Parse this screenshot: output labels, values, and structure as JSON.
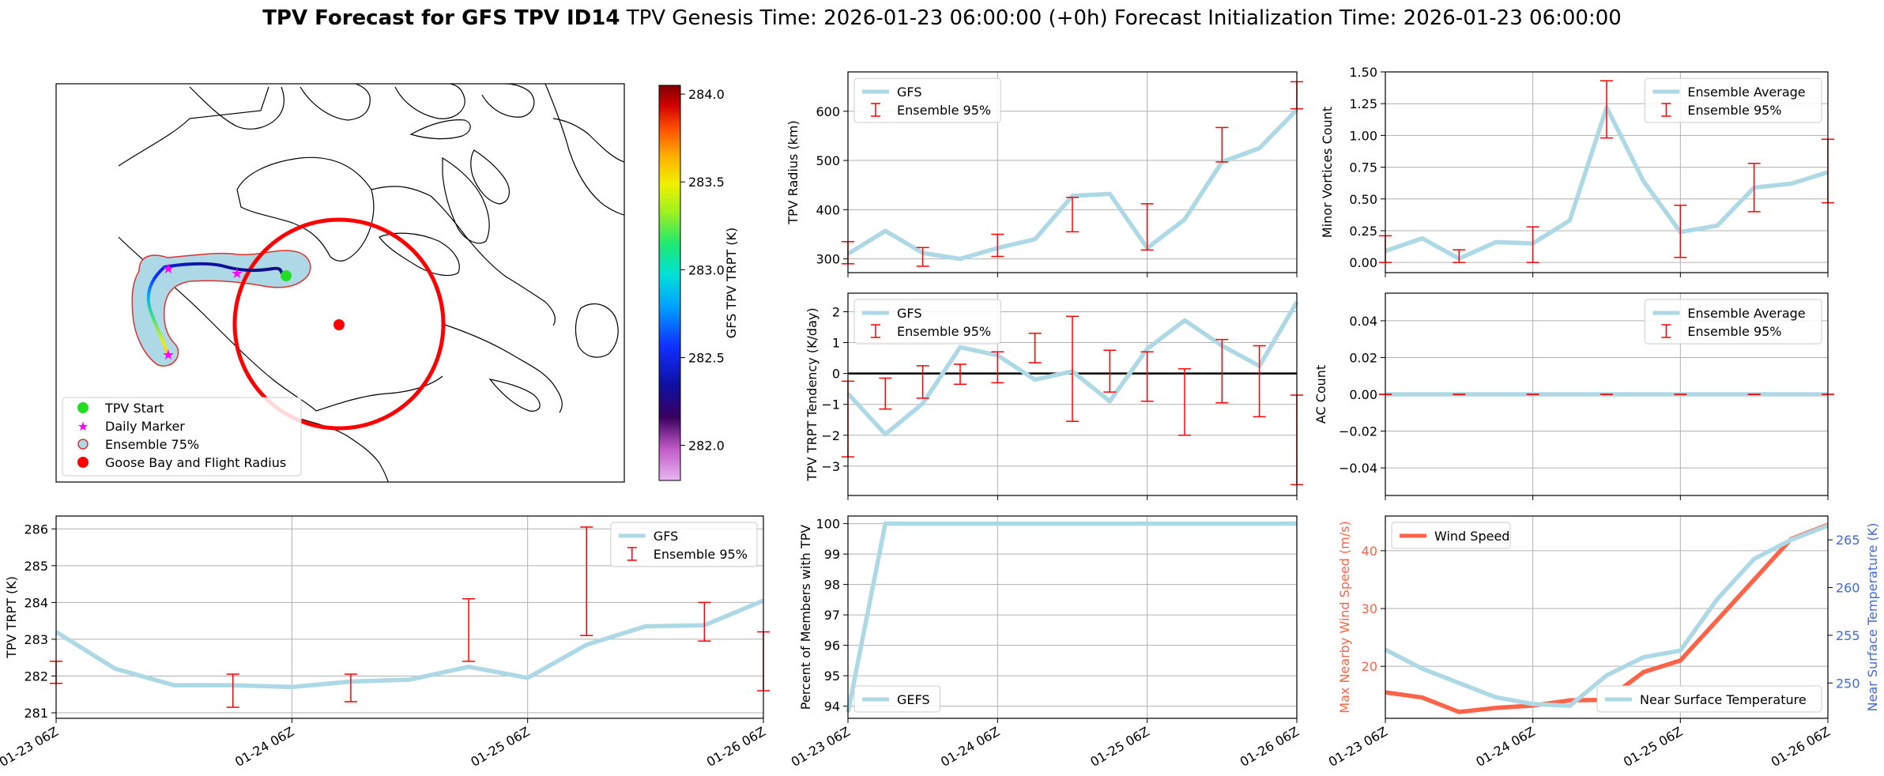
{
  "figure": {
    "title_bold": "TPV Forecast for GFS TPV ID14",
    "title_rest": "TPV Genesis Time: 2026-01-23 06:00:00 (+0h)   Forecast Initialization Time: 2026-01-23 06:00:00"
  },
  "colors": {
    "gfs_line": "#add8e6",
    "ensemble_bar": "#ff0000",
    "wind": "#ff6347",
    "temp_axis": "#4169e1",
    "wind_axis": "#ff6347",
    "zero_line": "#000000",
    "grid": "#b0b0b0"
  },
  "map": {
    "colorbar_label": "GFS TPV TRPT (K)",
    "colorbar_ticks": [
      "284.0",
      "283.5",
      "283.0",
      "282.5",
      "282.0"
    ],
    "colorbar_tick_values": [
      284.0,
      283.5,
      283.0,
      282.5,
      282.0
    ],
    "colorbar_range": [
      281.8,
      284.05
    ],
    "legend": [
      {
        "label": "TPV Start",
        "marker": "green-dot"
      },
      {
        "label": "Daily Marker",
        "marker": "magenta-star"
      },
      {
        "label": "Ensemble 75%",
        "marker": "lightblue-circle"
      },
      {
        "label": "Goose Bay and Flight Radius",
        "marker": "red-dot"
      }
    ]
  },
  "chart_data": [
    {
      "id": "radius",
      "type": "line",
      "title": "",
      "ylabel": "TPV Radius (km)",
      "ylim": [
        272,
        680
      ],
      "yticks": [
        300,
        400,
        500,
        600
      ],
      "x_hours": [
        0,
        6,
        12,
        18,
        24,
        30,
        36,
        42,
        48,
        54,
        60,
        66,
        72
      ],
      "series": [
        {
          "name": "GFS",
          "values": [
            310,
            357,
            312,
            300,
            322,
            340,
            428,
            432,
            322,
            380,
            497,
            525,
            603
          ]
        }
      ],
      "errorbars": {
        "name": "Ensemble 95%",
        "x_hours": [
          0,
          12,
          24,
          36,
          48,
          60,
          72
        ],
        "low": [
          290,
          285,
          305,
          355,
          318,
          497,
          605
        ],
        "high": [
          335,
          323,
          350,
          425,
          412,
          567,
          660
        ]
      },
      "legend": [
        "GFS",
        "Ensemble 95%"
      ],
      "legend_position": "top-left"
    },
    {
      "id": "minor",
      "type": "line",
      "ylabel": "Minor Vortices Count",
      "ylim": [
        -0.08,
        1.5
      ],
      "yticks": [
        "0.00",
        "0.25",
        "0.50",
        "0.75",
        "1.00",
        "1.25",
        "1.50"
      ],
      "ytick_values": [
        0,
        0.25,
        0.5,
        0.75,
        1.0,
        1.25,
        1.5
      ],
      "x_hours": [
        0,
        6,
        12,
        18,
        24,
        30,
        36,
        42,
        48,
        54,
        60,
        66,
        72
      ],
      "series": [
        {
          "name": "Ensemble Average",
          "values": [
            0.09,
            0.19,
            0.03,
            0.16,
            0.15,
            0.33,
            1.22,
            0.64,
            0.24,
            0.29,
            0.59,
            0.62,
            0.71
          ]
        }
      ],
      "errorbars": {
        "name": "Ensemble 95%",
        "x_hours": [
          0,
          12,
          24,
          36,
          48,
          60,
          72
        ],
        "low": [
          0.0,
          0.0,
          0.0,
          0.98,
          0.04,
          0.4,
          0.47
        ],
        "high": [
          0.21,
          0.1,
          0.28,
          1.43,
          0.45,
          0.78,
          0.97
        ]
      },
      "legend": [
        "Ensemble Average",
        "Ensemble 95%"
      ],
      "legend_position": "top-right"
    },
    {
      "id": "tendency",
      "type": "line",
      "ylabel": "TPV TRPT Tendency (K/day)",
      "ylim": [
        -3.95,
        2.6
      ],
      "yticks": [
        "2",
        "1",
        "0",
        "−1",
        "−2",
        "−3"
      ],
      "ytick_values": [
        2,
        1,
        0,
        -1,
        -2,
        -3
      ],
      "zero_line": 0,
      "x_hours": [
        0,
        6,
        12,
        18,
        24,
        30,
        36,
        42,
        48,
        54,
        60,
        66,
        72
      ],
      "series": [
        {
          "name": "GFS",
          "values": [
            -0.65,
            -1.97,
            -0.97,
            0.85,
            0.59,
            -0.2,
            0.07,
            -0.9,
            0.8,
            1.72,
            0.9,
            0.24,
            2.31
          ]
        }
      ],
      "errorbars": {
        "name": "Ensemble 95%",
        "x_hours": [
          0,
          6,
          12,
          18,
          24,
          30,
          36,
          42,
          48,
          54,
          60,
          66,
          72
        ],
        "low": [
          -2.7,
          -1.15,
          -0.8,
          -0.35,
          -0.3,
          0.35,
          -1.55,
          -0.6,
          -0.9,
          -2.0,
          -0.95,
          -1.4,
          -3.6
        ],
        "high": [
          -0.25,
          -0.15,
          0.25,
          0.3,
          0.7,
          1.3,
          1.85,
          0.75,
          0.7,
          0.15,
          1.1,
          0.9,
          -0.7
        ]
      },
      "legend": [
        "GFS",
        "Ensemble 95%"
      ],
      "legend_position": "top-left"
    },
    {
      "id": "ac",
      "type": "line",
      "ylabel": "AC Count",
      "ylim": [
        -0.055,
        0.055
      ],
      "yticks": [
        "0.04",
        "0.02",
        "0.00",
        "−0.02",
        "−0.04"
      ],
      "ytick_values": [
        0.04,
        0.02,
        0.0,
        -0.02,
        -0.04
      ],
      "x_hours": [
        0,
        6,
        12,
        18,
        24,
        30,
        36,
        42,
        48,
        54,
        60,
        66,
        72
      ],
      "series": [
        {
          "name": "Ensemble Average",
          "values": [
            0,
            0,
            0,
            0,
            0,
            0,
            0,
            0,
            0,
            0,
            0,
            0,
            0
          ]
        }
      ],
      "errorbars": {
        "name": "Ensemble 95%",
        "x_hours": [
          0,
          12,
          24,
          36,
          48,
          60,
          72
        ],
        "low": [
          0,
          0,
          0,
          0,
          0,
          0,
          0
        ],
        "high": [
          0,
          0,
          0,
          0,
          0,
          0,
          0
        ]
      },
      "legend": [
        "Ensemble Average",
        "Ensemble 95%"
      ],
      "legend_position": "top-right"
    },
    {
      "id": "trpt",
      "type": "line",
      "ylabel": "TPV TRPT (K)",
      "ylim": [
        280.85,
        286.35
      ],
      "yticks": [
        "286",
        "285",
        "284",
        "283",
        "282",
        "281"
      ],
      "ytick_values": [
        286,
        285,
        284,
        283,
        282,
        281
      ],
      "x_hours": [
        0,
        6,
        12,
        18,
        24,
        30,
        36,
        42,
        48,
        54,
        60,
        66,
        72
      ],
      "series": [
        {
          "name": "GFS",
          "values": [
            283.2,
            282.2,
            281.75,
            281.75,
            281.7,
            281.85,
            281.9,
            282.25,
            281.95,
            282.85,
            283.35,
            283.38,
            284.05
          ]
        }
      ],
      "errorbars": {
        "name": "Ensemble 95%",
        "x_hours": [
          0,
          18,
          30,
          42,
          54,
          66,
          72
        ],
        "low": [
          281.8,
          281.15,
          281.3,
          282.4,
          283.1,
          282.95,
          281.6
        ],
        "high": [
          282.4,
          282.05,
          282.05,
          284.1,
          286.05,
          284.0,
          283.2
        ]
      },
      "legend": [
        "GFS",
        "Ensemble 95%"
      ],
      "legend_position": "top-right",
      "xticks": [
        "01-23 06Z",
        "01-24 06Z",
        "01-25 06Z",
        "01-26 06Z"
      ]
    },
    {
      "id": "percent",
      "type": "line",
      "ylabel": "Percent of Members with TPV",
      "ylim": [
        93.6,
        100.25
      ],
      "yticks": [
        "100",
        "99",
        "98",
        "97",
        "96",
        "95",
        "94"
      ],
      "ytick_values": [
        100,
        99,
        98,
        97,
        96,
        95,
        94
      ],
      "x_hours": [
        0,
        6,
        12,
        18,
        24,
        30,
        36,
        42,
        48,
        54,
        60,
        66,
        72
      ],
      "series": [
        {
          "name": "GEFS",
          "values": [
            93.8,
            100,
            100,
            100,
            100,
            100,
            100,
            100,
            100,
            100,
            100,
            100,
            100
          ]
        }
      ],
      "legend": [
        "GEFS"
      ],
      "legend_position": "bottom-left",
      "xticks": [
        "01-23 06Z",
        "01-24 06Z",
        "01-25 06Z",
        "01-26 06Z"
      ]
    },
    {
      "id": "wind_temp",
      "type": "line",
      "ylabel": "Max Nearby Wind Speed (m/s)",
      "ylabel_right": "Near Surface Temperature (K)",
      "ylim": [
        11,
        46
      ],
      "yticks": [
        "40",
        "30",
        "20"
      ],
      "ytick_values": [
        40,
        30,
        20
      ],
      "ylim_right": [
        246.3,
        267.5
      ],
      "yticks_right": [
        "265",
        "260",
        "255",
        "250"
      ],
      "ytick_values_right": [
        265,
        260,
        255,
        250
      ],
      "x_hours": [
        0,
        6,
        12,
        18,
        24,
        30,
        36,
        42,
        48,
        54,
        60,
        66,
        72
      ],
      "series": [
        {
          "name": "Wind Speed",
          "axis": "left",
          "values": [
            15.5,
            14.6,
            12.1,
            12.8,
            13.2,
            14.1,
            14.2,
            19.0,
            21.0,
            28.0,
            35.0,
            42.0,
            44.5
          ]
        },
        {
          "name": "Near Surface Temperature",
          "axis": "right",
          "values": [
            253.5,
            251.5,
            250.0,
            248.5,
            247.8,
            247.6,
            250.8,
            252.7,
            253.4,
            258.8,
            263.0,
            265.0,
            266.5
          ]
        }
      ],
      "legend": [
        "Wind Speed",
        "Near Surface Temperature"
      ],
      "xticks": [
        "01-23 06Z",
        "01-24 06Z",
        "01-25 06Z",
        "01-26 06Z"
      ]
    }
  ]
}
